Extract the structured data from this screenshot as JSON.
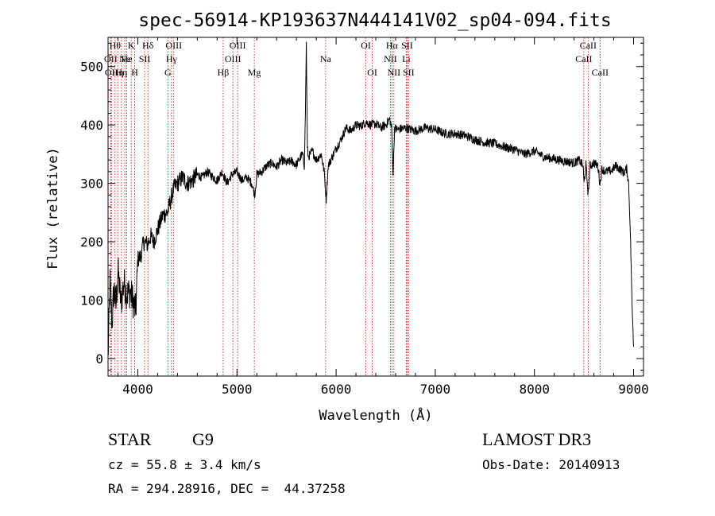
{
  "chart_data": {
    "type": "line",
    "title": "spec-56914-KP193637N444141V02_sp04-094.fits",
    "xlabel": "Wavelength (Å)",
    "ylabel": "Flux (relative)",
    "xlim": [
      3700,
      9100
    ],
    "ylim": [
      -30,
      550
    ],
    "xticks": [
      4000,
      5000,
      6000,
      7000,
      8000,
      9000
    ],
    "yticks": [
      0,
      100,
      200,
      300,
      400,
      500
    ],
    "series": [
      {
        "name": "flux",
        "x": [
          3700,
          3720,
          3740,
          3760,
          3780,
          3800,
          3830,
          3860,
          3890,
          3920,
          3950,
          3980,
          4000,
          4030,
          4060,
          4100,
          4130,
          4160,
          4200,
          4250,
          4300,
          4330,
          4360,
          4400,
          4450,
          4500,
          4550,
          4600,
          4650,
          4700,
          4750,
          4800,
          4850,
          4900,
          4950,
          5000,
          5050,
          5100,
          5150,
          5180,
          5200,
          5250,
          5300,
          5350,
          5400,
          5450,
          5500,
          5550,
          5600,
          5640,
          5660,
          5680,
          5690,
          5700,
          5710,
          5720,
          5760,
          5800,
          5850,
          5880,
          5900,
          5920,
          5960,
          6000,
          6050,
          6100,
          6150,
          6200,
          6250,
          6300,
          6350,
          6400,
          6450,
          6500,
          6540,
          6560,
          6575,
          6590,
          6620,
          6700,
          6800,
          6900,
          7000,
          7100,
          7200,
          7300,
          7400,
          7500,
          7600,
          7700,
          7800,
          7900,
          8000,
          8100,
          8200,
          8300,
          8400,
          8450,
          8490,
          8500,
          8520,
          8542,
          8560,
          8600,
          8640,
          8662,
          8680,
          8720,
          8780,
          8820,
          8860,
          8900,
          8930,
          8950,
          8970,
          8985,
          9000
        ],
        "y": [
          0,
          130,
          60,
          120,
          90,
          150,
          95,
          130,
          110,
          115,
          100,
          80,
          170,
          175,
          200,
          195,
          210,
          200,
          220,
          245,
          250,
          270,
          290,
          300,
          310,
          300,
          305,
          315,
          310,
          320,
          312,
          305,
          320,
          300,
          315,
          320,
          305,
          310,
          300,
          280,
          315,
          320,
          330,
          335,
          328,
          340,
          335,
          338,
          332,
          345,
          350,
          330,
          420,
          540,
          360,
          345,
          355,
          340,
          350,
          320,
          272,
          330,
          345,
          360,
          375,
          395,
          390,
          400,
          398,
          405,
          400,
          402,
          395,
          400,
          410,
          395,
          318,
          395,
          392,
          395,
          390,
          395,
          392,
          385,
          385,
          382,
          375,
          370,
          368,
          362,
          358,
          350,
          355,
          345,
          342,
          338,
          335,
          340,
          330,
          300,
          332,
          280,
          330,
          335,
          330,
          298,
          325,
          320,
          322,
          330,
          325,
          318,
          325,
          300,
          200,
          90,
          20
        ]
      }
    ],
    "lines": [
      {
        "wl": 3727,
        "label": "OII",
        "row": 2
      },
      {
        "wl": 3734,
        "label": "OII",
        "row": 3
      },
      {
        "wl": 3771,
        "label": "Hθ",
        "row": 1
      },
      {
        "wl": 3798,
        "label": "Hη",
        "row": 3
      },
      {
        "wl": 3835,
        "label": "Hη",
        "row": 3
      },
      {
        "wl": 3869,
        "label": "Ne",
        "row": 2
      },
      {
        "wl": 3889,
        "label": "He",
        "row": 2
      },
      {
        "wl": 3934,
        "label": "K",
        "row": 1
      },
      {
        "wl": 3969,
        "label": "H",
        "row": 3
      },
      {
        "wl": 4069,
        "label": "SII",
        "row": 2
      },
      {
        "wl": 4102,
        "label": "Hδ",
        "row": 1
      },
      {
        "wl": 4304,
        "label": "G",
        "row": 3
      },
      {
        "wl": 4340,
        "label": "Hγ",
        "row": 2
      },
      {
        "wl": 4363,
        "label": "OIII",
        "row": 1
      },
      {
        "wl": 4861,
        "label": "Hβ",
        "row": 3
      },
      {
        "wl": 4959,
        "label": "OIII",
        "row": 2
      },
      {
        "wl": 5007,
        "label": "OIII",
        "row": 1
      },
      {
        "wl": 5175,
        "label": "Mg",
        "row": 3
      },
      {
        "wl": 5894,
        "label": "Na",
        "row": 2
      },
      {
        "wl": 6300,
        "label": "OI",
        "row": 1
      },
      {
        "wl": 6364,
        "label": "OI",
        "row": 3
      },
      {
        "wl": 6548,
        "label": "NII",
        "row": 2
      },
      {
        "wl": 6563,
        "label": "Hα",
        "row": 1
      },
      {
        "wl": 6583,
        "label": "NII",
        "row": 3
      },
      {
        "wl": 6708,
        "label": "Li",
        "row": 2
      },
      {
        "wl": 6716,
        "label": "SII",
        "row": 1
      },
      {
        "wl": 6731,
        "label": "SII",
        "row": 3
      },
      {
        "wl": 8498,
        "label": "CaII",
        "row": 2
      },
      {
        "wl": 8542,
        "label": "CaII",
        "row": 1
      },
      {
        "wl": 8662,
        "label": "CaII",
        "row": 3
      }
    ],
    "line_color": "#cc0000"
  },
  "info": {
    "object_class": "STAR",
    "subclass": "G9",
    "survey": "LAMOST DR3",
    "cz": "cz = 55.8 ± 3.4 km/s",
    "obs_date": "Obs-Date: 20140913",
    "coords": "RA = 294.28916, DEC =  44.37258"
  }
}
